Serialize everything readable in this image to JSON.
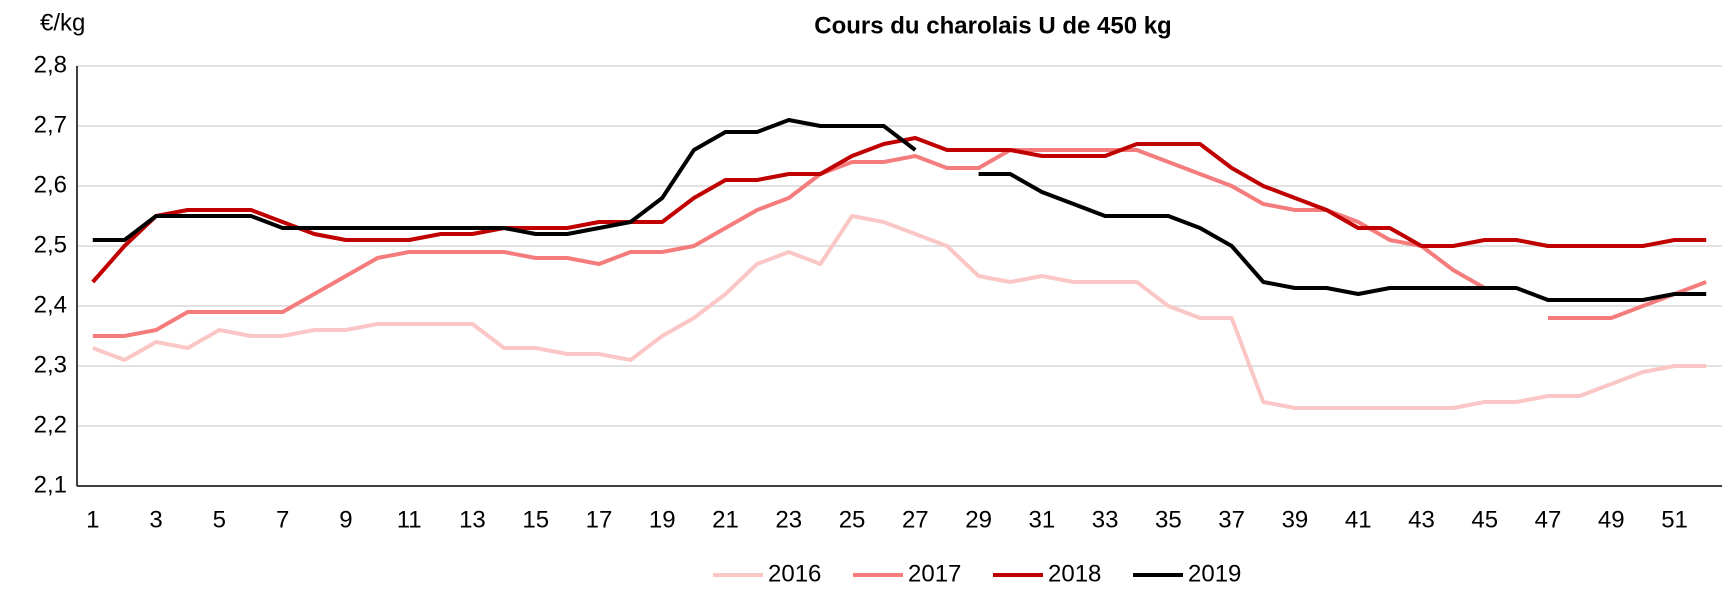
{
  "chart_data": {
    "type": "line",
    "title": "Cours du charolais U de 450 kg",
    "y_label": "€/kg",
    "categories": [
      "1",
      null,
      "3",
      null,
      "5",
      null,
      "7",
      null,
      "9",
      null,
      "11",
      null,
      "13",
      null,
      "15",
      null,
      "17",
      null,
      "19",
      null,
      "21",
      null,
      "23",
      null,
      "25",
      null,
      "27",
      null,
      "29",
      null,
      "31",
      null,
      "33",
      null,
      "35",
      null,
      "37",
      null,
      "39",
      null,
      "41",
      null,
      "43",
      null,
      "45",
      null,
      "47",
      null,
      "49",
      null,
      "51",
      null
    ],
    "ylim": [
      2.1,
      2.8
    ],
    "yticks": [
      {
        "value": 2.1,
        "label": "2,1"
      },
      {
        "value": 2.2,
        "label": "2,2"
      },
      {
        "value": 2.3,
        "label": "2,3"
      },
      {
        "value": 2.4,
        "label": "2,4"
      },
      {
        "value": 2.5,
        "label": "2,5"
      },
      {
        "value": 2.6,
        "label": "2,6"
      },
      {
        "value": 2.7,
        "label": "2,7"
      },
      {
        "value": 2.8,
        "label": "2,8"
      }
    ],
    "grid": true,
    "legend": "bottom",
    "series": [
      {
        "name": "2016",
        "color": "#fbc6c6",
        "values": [
          2.33,
          2.31,
          2.34,
          2.33,
          2.36,
          2.35,
          2.35,
          2.36,
          2.36,
          2.37,
          2.37,
          2.37,
          2.37,
          2.33,
          2.33,
          2.32,
          2.32,
          2.31,
          2.35,
          2.38,
          2.42,
          2.47,
          2.49,
          2.47,
          2.55,
          2.54,
          2.52,
          2.5,
          2.45,
          2.44,
          2.45,
          2.44,
          2.44,
          2.44,
          2.4,
          2.38,
          2.38,
          2.24,
          2.23,
          2.23,
          2.23,
          2.23,
          2.23,
          2.23,
          2.24,
          2.24,
          2.25,
          2.25,
          2.27,
          2.29,
          2.3,
          2.3
        ]
      },
      {
        "name": "2017",
        "color": "#f47c7c",
        "values": [
          2.35,
          2.35,
          2.36,
          2.39,
          2.39,
          2.39,
          2.39,
          2.42,
          2.45,
          2.48,
          2.49,
          2.49,
          2.49,
          2.49,
          2.48,
          2.48,
          2.47,
          2.49,
          2.49,
          2.5,
          2.53,
          2.56,
          2.58,
          2.62,
          2.64,
          2.64,
          2.65,
          2.63,
          2.63,
          2.66,
          2.66,
          2.66,
          2.66,
          2.66,
          2.64,
          2.62,
          2.6,
          2.57,
          2.56,
          2.56,
          2.54,
          2.51,
          2.5,
          2.46,
          2.43,
          null,
          2.38,
          2.38,
          2.38,
          2.4,
          2.42,
          2.44
        ]
      },
      {
        "name": "2018",
        "color": "#c00000",
        "values": [
          2.44,
          2.5,
          2.55,
          2.56,
          2.56,
          2.56,
          2.54,
          2.52,
          2.51,
          2.51,
          2.51,
          2.52,
          2.52,
          2.53,
          2.53,
          2.53,
          2.54,
          2.54,
          2.54,
          2.58,
          2.61,
          2.61,
          2.62,
          2.62,
          2.65,
          2.67,
          2.68,
          2.66,
          2.66,
          2.66,
          2.65,
          2.65,
          2.65,
          2.67,
          2.67,
          2.67,
          2.63,
          2.6,
          2.58,
          2.56,
          2.53,
          2.53,
          2.5,
          2.5,
          2.51,
          2.51,
          2.5,
          2.5,
          2.5,
          2.5,
          2.51,
          2.51
        ]
      },
      {
        "name": "2019",
        "color": "#000000",
        "values": [
          2.51,
          2.51,
          2.55,
          2.55,
          2.55,
          2.55,
          2.53,
          2.53,
          2.53,
          2.53,
          2.53,
          2.53,
          2.53,
          2.53,
          2.52,
          2.52,
          2.53,
          2.54,
          2.58,
          2.66,
          2.69,
          2.69,
          2.71,
          2.7,
          2.7,
          2.7,
          2.66,
          null,
          2.62,
          2.62,
          2.59,
          2.57,
          2.55,
          2.55,
          2.55,
          2.53,
          2.5,
          2.44,
          2.43,
          2.43,
          2.42,
          2.43,
          2.43,
          2.43,
          2.43,
          2.43,
          2.41,
          2.41,
          2.41,
          2.41,
          2.42,
          2.42
        ]
      }
    ]
  }
}
